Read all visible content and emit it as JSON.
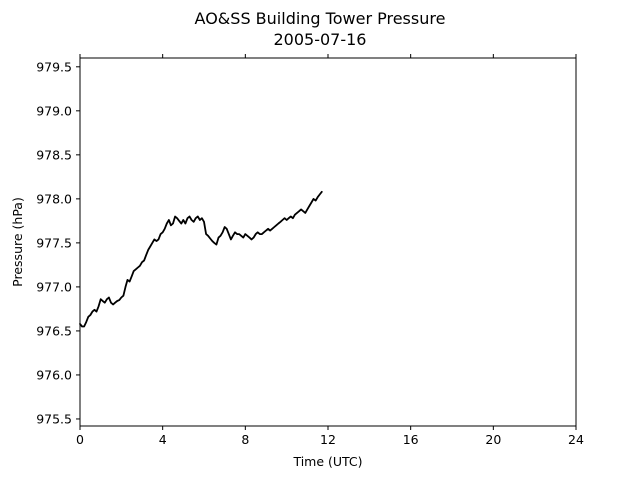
{
  "chart_data": {
    "type": "line",
    "title": "AO&SS Building Tower Pressure",
    "subtitle": "2005-07-16",
    "xlabel": "Time (UTC)",
    "ylabel": "Pressure (hPa)",
    "xlim": [
      0,
      24
    ],
    "ylim": [
      975.42,
      979.6
    ],
    "xticks": [
      0,
      4,
      8,
      12,
      16,
      20,
      24
    ],
    "xtick_labels": [
      "0",
      "4",
      "8",
      "12",
      "16",
      "20",
      "24"
    ],
    "yticks": [
      975.5,
      976.0,
      976.5,
      977.0,
      977.5,
      978.0,
      978.5,
      979.0,
      979.5
    ],
    "ytick_labels": [
      "975.5",
      "976.0",
      "976.5",
      "977.0",
      "977.5",
      "978.0",
      "978.5",
      "979.0",
      "979.5"
    ],
    "grid": false,
    "legend": false,
    "series": [
      {
        "color": "#000000",
        "x": [
          0.0,
          0.1,
          0.2,
          0.3,
          0.4,
          0.5,
          0.6,
          0.7,
          0.8,
          0.9,
          1.0,
          1.1,
          1.2,
          1.3,
          1.4,
          1.5,
          1.6,
          1.7,
          1.8,
          1.9,
          2.0,
          2.1,
          2.2,
          2.3,
          2.4,
          2.5,
          2.6,
          2.7,
          2.8,
          2.9,
          3.0,
          3.1,
          3.2,
          3.3,
          3.4,
          3.5,
          3.6,
          3.7,
          3.8,
          3.9,
          4.0,
          4.1,
          4.2,
          4.3,
          4.4,
          4.5,
          4.6,
          4.7,
          4.8,
          4.9,
          5.0,
          5.1,
          5.2,
          5.3,
          5.4,
          5.5,
          5.6,
          5.7,
          5.8,
          5.9,
          6.0,
          6.1,
          6.2,
          6.3,
          6.4,
          6.5,
          6.6,
          6.7,
          6.8,
          6.9,
          7.0,
          7.1,
          7.2,
          7.3,
          7.4,
          7.5,
          7.6,
          7.7,
          7.8,
          7.9,
          8.0,
          8.1,
          8.2,
          8.3,
          8.4,
          8.5,
          8.6,
          8.7,
          8.8,
          8.9,
          9.0,
          9.1,
          9.2,
          9.3,
          9.4,
          9.5,
          9.6,
          9.7,
          9.8,
          9.9,
          10.0,
          10.1,
          10.2,
          10.3,
          10.4,
          10.5,
          10.6,
          10.7,
          10.8,
          10.9,
          11.0,
          11.1,
          11.2,
          11.3,
          11.4,
          11.5,
          11.6,
          11.7
        ],
        "y": [
          976.58,
          976.55,
          976.55,
          976.6,
          976.66,
          976.68,
          976.72,
          976.74,
          976.72,
          976.78,
          976.86,
          976.84,
          976.82,
          976.86,
          976.88,
          976.82,
          976.8,
          976.82,
          976.84,
          976.85,
          976.88,
          976.9,
          977.0,
          977.08,
          977.06,
          977.12,
          977.18,
          977.2,
          977.22,
          977.24,
          977.28,
          977.3,
          977.36,
          977.42,
          977.46,
          977.5,
          977.54,
          977.52,
          977.54,
          977.6,
          977.62,
          977.66,
          977.72,
          977.76,
          977.7,
          977.72,
          977.8,
          977.78,
          977.75,
          977.72,
          977.76,
          977.72,
          977.78,
          977.8,
          977.76,
          977.74,
          977.78,
          977.8,
          977.76,
          977.78,
          977.74,
          977.6,
          977.58,
          977.55,
          977.52,
          977.5,
          977.48,
          977.56,
          977.58,
          977.62,
          977.68,
          977.66,
          977.6,
          977.54,
          977.58,
          977.62,
          977.6,
          977.6,
          977.58,
          977.56,
          977.6,
          977.58,
          977.56,
          977.54,
          977.56,
          977.6,
          977.62,
          977.6,
          977.6,
          977.62,
          977.64,
          977.66,
          977.64,
          977.66,
          977.68,
          977.7,
          977.72,
          977.74,
          977.76,
          977.78,
          977.76,
          977.78,
          977.8,
          977.78,
          977.82,
          977.84,
          977.86,
          977.88,
          977.86,
          977.84,
          977.88,
          977.92,
          977.96,
          978.0,
          977.98,
          978.02,
          978.05,
          978.08
        ]
      }
    ]
  }
}
